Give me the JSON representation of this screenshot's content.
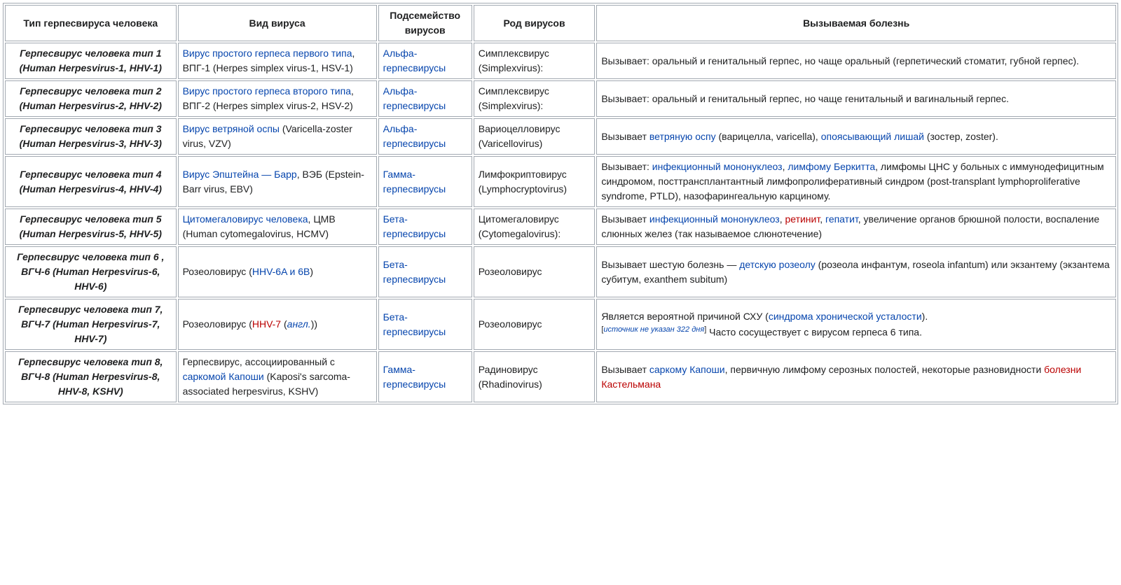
{
  "table": {
    "headers": [
      "Тип герпесвируса человека",
      "Вид вируса",
      "Подсемейство вирусов",
      "Род вирусов",
      "Вызываемая болезнь"
    ],
    "rows": [
      {
        "type": "Герпесвирус человека тип 1 (Human Herpesvirus-1, HHV-1)",
        "species": [
          {
            "t": "Вирус простого герпеса первого типа",
            "link": true
          },
          {
            "t": ", ВПГ-1 (Herpes simplex virus-1, HSV-1)"
          }
        ],
        "subfamily": [
          {
            "t": "Альфа-герпесвирусы",
            "link": true
          }
        ],
        "genus": [
          {
            "t": "Симплексвирус (Simplexvirus):"
          }
        ],
        "disease": [
          {
            "t": "Вызывает: оральный и генитальный герпес, но чаще оральный (герпетический стоматит, губной герпес)."
          }
        ]
      },
      {
        "type": "Герпесвирус человека тип 2 (Human Herpesvirus-2, HHV-2)",
        "species": [
          {
            "t": "Вирус простого герпеса второго типа",
            "link": true
          },
          {
            "t": ", ВПГ-2 (Herpes simplex virus-2, HSV-2)"
          }
        ],
        "subfamily": [
          {
            "t": "Альфа-герпесвирусы",
            "link": true
          }
        ],
        "genus": [
          {
            "t": "Симплексвирус (Simplexvirus):"
          }
        ],
        "disease": [
          {
            "t": "Вызывает: оральный и генитальный герпес, но чаще генитальный и вагинальный герпес."
          }
        ]
      },
      {
        "type": "Герпесвирус человека тип 3 (Human Herpesvirus-3, HHV-3)",
        "species": [
          {
            "t": "Вирус ветряной оспы",
            "link": true
          },
          {
            "t": " (Varicella-zoster virus, VZV)"
          }
        ],
        "subfamily": [
          {
            "t": "Альфа-герпесвирусы",
            "link": true
          }
        ],
        "genus": [
          {
            "t": "Вариоцелловирус (Varicellovirus)"
          }
        ],
        "disease": [
          {
            "t": "Вызывает "
          },
          {
            "t": "ветряную оспу",
            "link": true
          },
          {
            "t": " (варицелла, varicella), "
          },
          {
            "t": "опоясывающий лишай",
            "link": true
          },
          {
            "t": " (зостер, zoster)."
          }
        ]
      },
      {
        "type": "Герпесвирус человека тип 4 (Human Herpesvirus-4, HHV-4)",
        "species": [
          {
            "t": "Вирус Эпштейна — Барр",
            "link": true
          },
          {
            "t": ", ВЭБ (Epstein-Barr virus, EBV)"
          }
        ],
        "subfamily": [
          {
            "t": "Гамма-герпесвирусы",
            "link": true
          }
        ],
        "genus": [
          {
            "t": "Лимфокриптовирус (Lymphocryptovirus)"
          }
        ],
        "disease": [
          {
            "t": "Вызывает: "
          },
          {
            "t": "инфекционный мононуклеоз",
            "link": true
          },
          {
            "t": ", "
          },
          {
            "t": "лимфому Беркитта",
            "link": true
          },
          {
            "t": ", лимфомы ЦНС у больных с иммунодефицитным синдромом, посттрансплантантный лимфопролиферативный синдром (post-transplant lymphoproliferative syndrome, PTLD), назофарингеальную карциному."
          }
        ]
      },
      {
        "type": "Герпесвирус человека тип 5 (Human Herpesvirus-5, HHV-5)",
        "species": [
          {
            "t": "Цитомегаловирус человека",
            "link": true
          },
          {
            "t": ", ЦМВ (Human cytomegalovirus, HCMV)"
          }
        ],
        "subfamily": [
          {
            "t": "Бета-герпесвирусы",
            "link": true
          }
        ],
        "genus": [
          {
            "t": "Цитомегаловирус (Cytomegalovirus):"
          }
        ],
        "disease": [
          {
            "t": "Вызывает "
          },
          {
            "t": "инфекционный мононуклеоз",
            "link": true
          },
          {
            "t": ", "
          },
          {
            "t": "ретинит",
            "red": true
          },
          {
            "t": ", "
          },
          {
            "t": "гепатит",
            "link": true
          },
          {
            "t": ", увеличение органов брюшной полости, воспаление слюнных желез (так называемое слюнотечение)"
          }
        ]
      },
      {
        "type": "Герпесвирус человека тип 6 , ВГЧ-6 (Human Herpesvirus-6, HHV-6)",
        "species": [
          {
            "t": "Розеоловирус ("
          },
          {
            "t": "HHV-6A и 6B",
            "link": true
          },
          {
            "t": ")"
          }
        ],
        "subfamily": [
          {
            "t": "Бета-герпесвирусы",
            "link": true
          }
        ],
        "genus": [
          {
            "t": "Розеоловирус"
          }
        ],
        "disease": [
          {
            "t": "Вызывает шестую болезнь — "
          },
          {
            "t": "детскую розеолу",
            "link": true
          },
          {
            "t": " (розеола инфантум, roseola infantum) или экзантему (экзантема субитум, exanthem subitum)"
          }
        ]
      },
      {
        "type": "Герпесвирус человека тип 7, ВГЧ-7 (Human Herpesvirus-7, HHV-7)",
        "species": [
          {
            "t": "Розеоловирус ("
          },
          {
            "t": "HHV-7",
            "red": true
          },
          {
            "t": " ("
          },
          {
            "t": "англ.",
            "link": true,
            "italic": true
          },
          {
            "t": "))"
          }
        ],
        "subfamily": [
          {
            "t": "Бета-герпесвирусы",
            "link": true
          }
        ],
        "genus": [
          {
            "t": "Розеоловирус"
          }
        ],
        "disease": [
          {
            "t": "Является вероятной причиной СХУ ("
          },
          {
            "t": "синдрома хронической усталости",
            "link": true
          },
          {
            "t": ")."
          },
          {
            "br": true
          },
          {
            "t": "источник не указан 322 дня",
            "source": true
          },
          {
            "t": " Часто сосуществует с вирусом герпеса 6 типа."
          }
        ]
      },
      {
        "type": "Герпесвирус человека тип 8, ВГЧ-8 (Human Herpesvirus-8, HHV-8, KSHV)",
        "species": [
          {
            "t": "Герпесвирус, ассоциированный с "
          },
          {
            "t": "саркомой Капоши",
            "link": true
          },
          {
            "t": " (Kaposi's sarcoma-associated herpesvirus, KSHV)"
          }
        ],
        "subfamily": [
          {
            "t": "Гамма-герпесвирусы",
            "link": true
          }
        ],
        "genus": [
          {
            "t": "Радиновирус (Rhadinovirus)"
          }
        ],
        "disease": [
          {
            "t": "Вызывает "
          },
          {
            "t": "саркому Капоши",
            "link": true
          },
          {
            "t": ", первичную лимфому серозных полостей, некоторые разновидности "
          },
          {
            "t": "болезни Кастельмана",
            "red": true
          }
        ]
      }
    ]
  },
  "colors": {
    "link": "#0645ad",
    "redlink": "#ba0000",
    "border": "#a2a9b1",
    "text": "#202122",
    "background": "#ffffff"
  }
}
